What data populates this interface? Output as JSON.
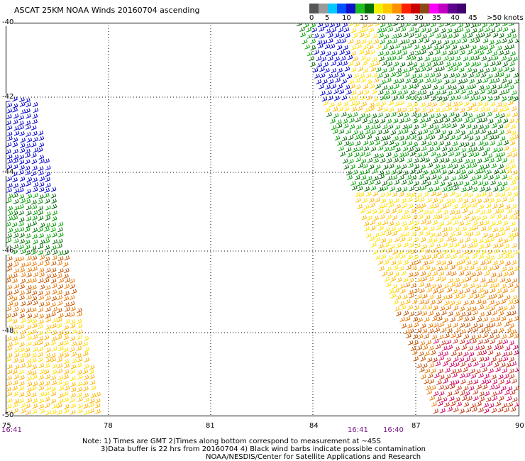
{
  "title": "ASCAT 25KM NOAA Winds 20160704 ascending",
  "colorbar": {
    "colors": [
      "#555555",
      "#9a9a9a",
      "#00c8ff",
      "#0050ff",
      "#1010c8",
      "#20c020",
      "#007000",
      "#f0f000",
      "#ffc800",
      "#ff9000",
      "#ff2000",
      "#c80000",
      "#8a4a10",
      "#ff00ff",
      "#c000c0",
      "#600090",
      "#400070"
    ],
    "labels": [
      "0",
      "5",
      "10",
      "15",
      "20",
      "25",
      "30",
      "35",
      "40",
      "45",
      ">50 knots"
    ]
  },
  "map": {
    "lon_range": [
      75,
      90
    ],
    "lat_range": [
      -50,
      -40
    ],
    "lat_labels": [
      "-40",
      "-42",
      "-44",
      "-46",
      "-48",
      "-50"
    ],
    "lon_labels": [
      "75",
      "78",
      "81",
      "84",
      "87",
      "90"
    ],
    "time_labels": [
      "16:41",
      "16:41",
      "16:40"
    ],
    "wind_colors": {
      "blue": "#0000cc",
      "green": "#00a000",
      "dark_green": "#006400",
      "yellow": "#ffe000",
      "gold": "#ffb400",
      "orange": "#e87800",
      "dark_orange": "#c05000",
      "red_brown": "#c03010",
      "magenta": "#d00060"
    }
  },
  "notes": {
    "line1": "Note: 1) Times are GMT 2)Times along bottom correspond to measurement at ~45S",
    "line2": "3)Data buffer is 22 hrs from 20160704 4) Black wind barbs indicate possible contamination",
    "line3": "NOAA/NESDIS/Center for Satellite Applications and Research"
  }
}
